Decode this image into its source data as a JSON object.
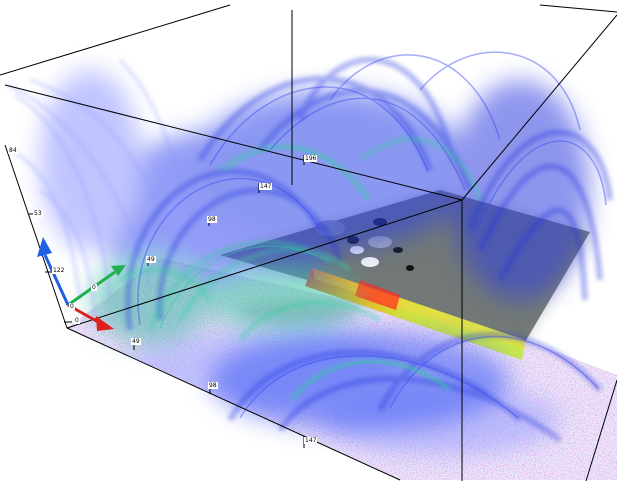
{
  "viewer": {
    "axis_ticks": {
      "depth": [
        "0",
        "49",
        "98",
        "147",
        "196"
      ],
      "front": [
        "0",
        "49",
        "98",
        "147"
      ],
      "vertical": [
        "0",
        "122",
        "53",
        "84"
      ]
    },
    "colors": {
      "field_line_strong": "#2233dd",
      "field_line_light": "#7f88ff",
      "field_line_green": "#33cc99",
      "slice": "#7b7f79",
      "ground": "#e9ecff",
      "axis_x": "#e0201c",
      "axis_y": "#20b050",
      "axis_z": "#1f5fe6"
    },
    "elements": {
      "volume": "magnetic-field-volume-rendering",
      "orientation_gizmo": "xyz-axis-arrows"
    }
  }
}
